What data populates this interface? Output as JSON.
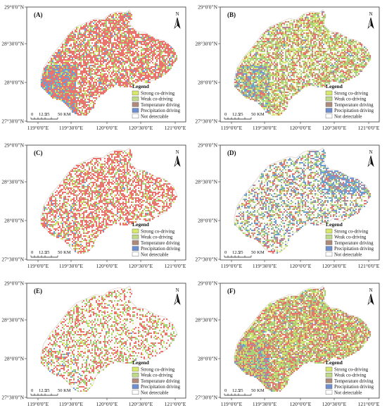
{
  "colors": {
    "strong": "#d8e86a",
    "weak": "#a6d37a",
    "temperature": "#e8736f",
    "precipitation": "#6b9ed6",
    "not_detectable": "#ffffff"
  },
  "legend": {
    "title": "Legend",
    "items": [
      {
        "label": "Strong co-driving",
        "color_key": "strong",
        "legend_color": "#d8e86a"
      },
      {
        "label": "Weak co-driving",
        "color_key": "weak",
        "legend_color": "#bfd98b"
      },
      {
        "label": "Temperature driving",
        "color_key": "temperature",
        "legend_color": "#b08a78"
      },
      {
        "label": "Precipitation driving",
        "color_key": "precipitation",
        "legend_color": "#6e8fcf"
      },
      {
        "label": "Not detectable",
        "color_key": "not_detectable",
        "legend_color": "#ffffff"
      }
    ]
  },
  "north": "N",
  "scale": {
    "ticks": [
      "0",
      "12.5",
      "25",
      "50 KM"
    ]
  },
  "y_ticks": [
    "29°0'0\"N",
    "28°30'0\"N",
    "28°0'0\"N",
    "27°30'0\"N"
  ],
  "x_ticks": [
    "119°0'0\"E",
    "119°30'0\"E",
    "120°0'0\"E",
    "120°30'0\"E",
    "121°0'0\"E"
  ],
  "panels": [
    {
      "id": "A",
      "label": "(A)",
      "mix": {
        "strong": 0.06,
        "weak": 0.12,
        "temperature": 0.52,
        "precipitation": 0.08
      }
    },
    {
      "id": "B",
      "label": "(B)",
      "mix": {
        "strong": 0.16,
        "weak": 0.3,
        "temperature": 0.22,
        "precipitation": 0.06
      }
    },
    {
      "id": "C",
      "label": "(C)",
      "mix": {
        "strong": 0.06,
        "weak": 0.1,
        "temperature": 0.4,
        "precipitation": 0.02
      }
    },
    {
      "id": "D",
      "label": "(D)",
      "mix": {
        "strong": 0.04,
        "weak": 0.14,
        "temperature": 0.14,
        "precipitation": 0.14
      }
    },
    {
      "id": "E",
      "label": "(E)",
      "mix": {
        "strong": 0.04,
        "weak": 0.14,
        "temperature": 0.2,
        "precipitation": 0.01
      }
    },
    {
      "id": "F",
      "label": "(F)",
      "mix": {
        "strong": 0.16,
        "weak": 0.34,
        "temperature": 0.34,
        "precipitation": 0.08
      }
    }
  ]
}
